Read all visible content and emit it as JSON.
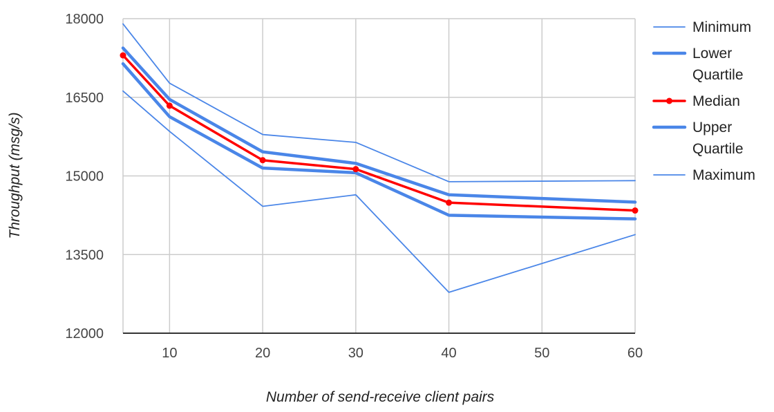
{
  "chart_data": {
    "type": "line",
    "title": "",
    "xlabel": "Number of send-receive client pairs",
    "ylabel": "Throughput (msg/s)",
    "x": [
      5,
      10,
      20,
      30,
      40,
      60
    ],
    "xlim": [
      5,
      60
    ],
    "ylim": [
      12000,
      18000
    ],
    "x_ticks": [
      "10",
      "20",
      "30",
      "40",
      "50",
      "60"
    ],
    "y_ticks": [
      "12000",
      "13500",
      "15000",
      "16500",
      "18000"
    ],
    "grid": true,
    "legend_position": "right",
    "legend": [
      {
        "key": "minimum",
        "lines": [
          "Minimum"
        ]
      },
      {
        "key": "lower",
        "lines": [
          "Lower",
          "Quartile"
        ]
      },
      {
        "key": "median",
        "lines": [
          "Median"
        ]
      },
      {
        "key": "upper",
        "lines": [
          "Upper",
          "Quartile"
        ]
      },
      {
        "key": "maximum",
        "lines": [
          "Maximum"
        ]
      }
    ],
    "series": [
      {
        "key": "minimum",
        "name": "Minimum",
        "color": "#4a86e8",
        "style": "thin",
        "values": [
          16620,
          15850,
          14420,
          14640,
          12780,
          13880
        ]
      },
      {
        "key": "lower",
        "name": "Lower Quartile",
        "color": "#4a86e8",
        "style": "thick",
        "values": [
          17140,
          16130,
          15150,
          15060,
          14250,
          14180
        ]
      },
      {
        "key": "median",
        "name": "Median",
        "color": "#ff0000",
        "style": "markers",
        "values": [
          17300,
          16340,
          15300,
          15130,
          14490,
          14340
        ]
      },
      {
        "key": "upper",
        "name": "Upper Quartile",
        "color": "#4a86e8",
        "style": "thick",
        "values": [
          17440,
          16460,
          15460,
          15240,
          14640,
          14500
        ]
      },
      {
        "key": "maximum",
        "name": "Maximum",
        "color": "#4a86e8",
        "style": "thin",
        "values": [
          17900,
          16770,
          15790,
          15640,
          14890,
          14910
        ]
      }
    ]
  }
}
